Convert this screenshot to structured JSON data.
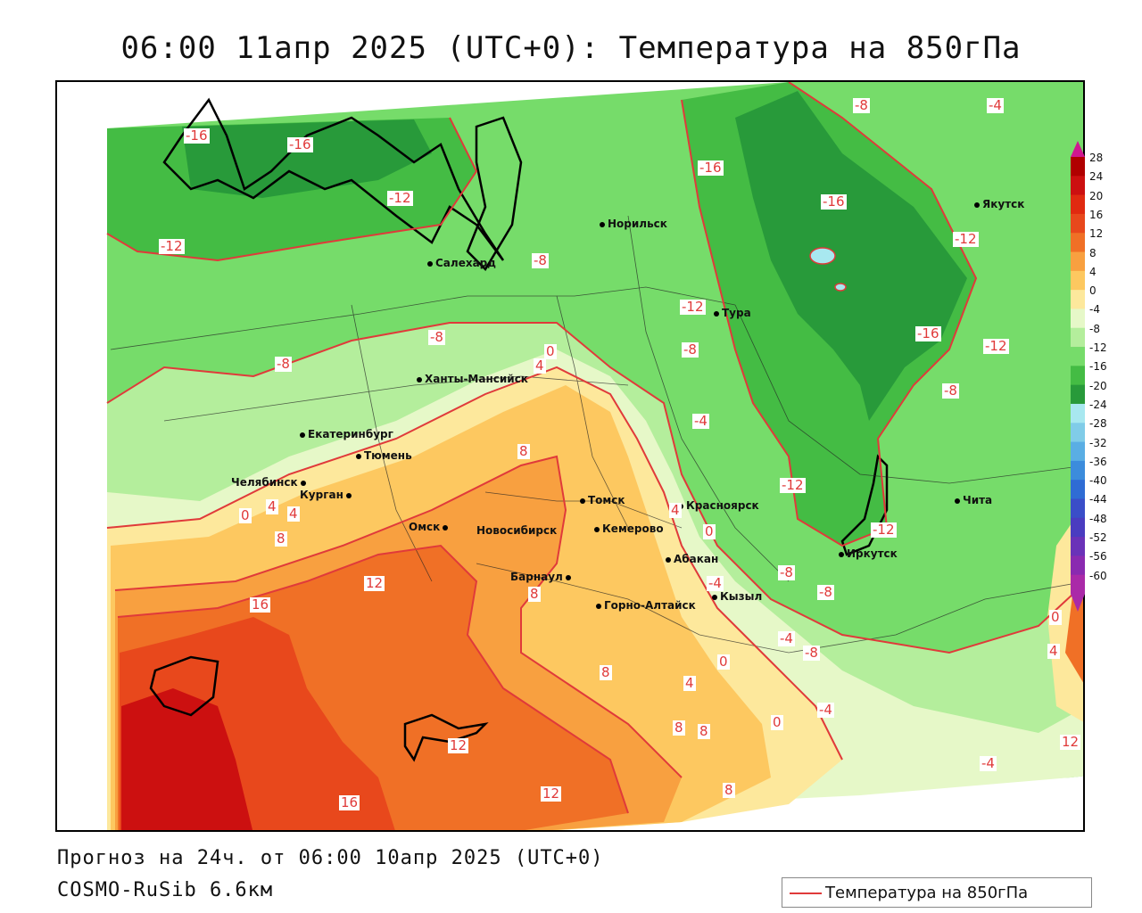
{
  "header": {
    "title": "06:00 11апр 2025 (UTC+0): Температура на 850гПа"
  },
  "footer": {
    "forecast": "Прогноз на 24ч. от 06:00 10апр 2025 (UTC+0)",
    "model": "COSMO-RuSib 6.6км"
  },
  "legend": {
    "label": "Температура на 850гПа",
    "line_color": "#e03a3a"
  },
  "colorbar": {
    "ticks": [
      "28",
      "24",
      "20",
      "16",
      "12",
      "8",
      "4",
      "0",
      "-4",
      "-8",
      "-12",
      "-16",
      "-20",
      "-24",
      "-28",
      "-32",
      "-36",
      "-40",
      "-44",
      "-48",
      "-52",
      "-56",
      "-60"
    ],
    "colors": [
      "#b00000",
      "#cc1010",
      "#e02a10",
      "#e8481c",
      "#f07026",
      "#f8a040",
      "#fdc860",
      "#fde89c",
      "#e6f8c8",
      "#b4ee9c",
      "#76dc6a",
      "#44bc44",
      "#289a3a",
      "#a8e8f0",
      "#80cce8",
      "#5aaee4",
      "#3c8cdc",
      "#2f6cd4",
      "#3a4ec8",
      "#4a3cc0",
      "#6a32b8",
      "#8a2ab0",
      "#aa2aa8"
    ]
  },
  "cities": [
    {
      "name": "Салехард"
    },
    {
      "name": "Норильск"
    },
    {
      "name": "Тура"
    },
    {
      "name": "Якутск"
    },
    {
      "name": "Ханты-Мансийск"
    },
    {
      "name": "Екатеринбург"
    },
    {
      "name": "Тюмень"
    },
    {
      "name": "Челябинск"
    },
    {
      "name": "Курган"
    },
    {
      "name": "Омск"
    },
    {
      "name": "Новосибирск"
    },
    {
      "name": "Томск"
    },
    {
      "name": "Кемерово"
    },
    {
      "name": "Красноярск"
    },
    {
      "name": "Абакан"
    },
    {
      "name": "Барнаул"
    },
    {
      "name": "Кызыл"
    },
    {
      "name": "Горно-Алтайск"
    },
    {
      "name": "Иркутск"
    },
    {
      "name": "Чита"
    }
  ],
  "contour_labels": [
    {
      "text": "-16"
    },
    {
      "text": "-16"
    },
    {
      "text": "-12"
    },
    {
      "text": "-12"
    },
    {
      "text": "-8"
    },
    {
      "text": "-8"
    },
    {
      "text": "-8"
    },
    {
      "text": "-16"
    },
    {
      "text": "-16"
    },
    {
      "text": "-8"
    },
    {
      "text": "-4"
    },
    {
      "text": "-12"
    },
    {
      "text": "-12"
    },
    {
      "text": "-8"
    },
    {
      "text": "-16"
    },
    {
      "text": "-12"
    },
    {
      "text": "-8"
    },
    {
      "text": "-4"
    },
    {
      "text": "0"
    },
    {
      "text": "4"
    },
    {
      "text": "8"
    },
    {
      "text": "-12"
    },
    {
      "text": "-12"
    },
    {
      "text": "8"
    },
    {
      "text": "4"
    },
    {
      "text": "0"
    },
    {
      "text": "4"
    },
    {
      "text": "0"
    },
    {
      "text": "-4"
    },
    {
      "text": "4"
    },
    {
      "text": "8"
    },
    {
      "text": "8"
    },
    {
      "text": "12"
    },
    {
      "text": "16"
    },
    {
      "text": "-8"
    },
    {
      "text": "-8"
    },
    {
      "text": "-4"
    },
    {
      "text": "-8"
    },
    {
      "text": "0"
    },
    {
      "text": "4"
    },
    {
      "text": "-4"
    },
    {
      "text": "8"
    },
    {
      "text": "8"
    },
    {
      "text": "0"
    },
    {
      "text": "4"
    },
    {
      "text": "-4"
    },
    {
      "text": "12"
    },
    {
      "text": "12"
    },
    {
      "text": "8"
    },
    {
      "text": "16"
    },
    {
      "text": "0"
    },
    {
      "text": "4"
    },
    {
      "text": "12"
    }
  ]
}
